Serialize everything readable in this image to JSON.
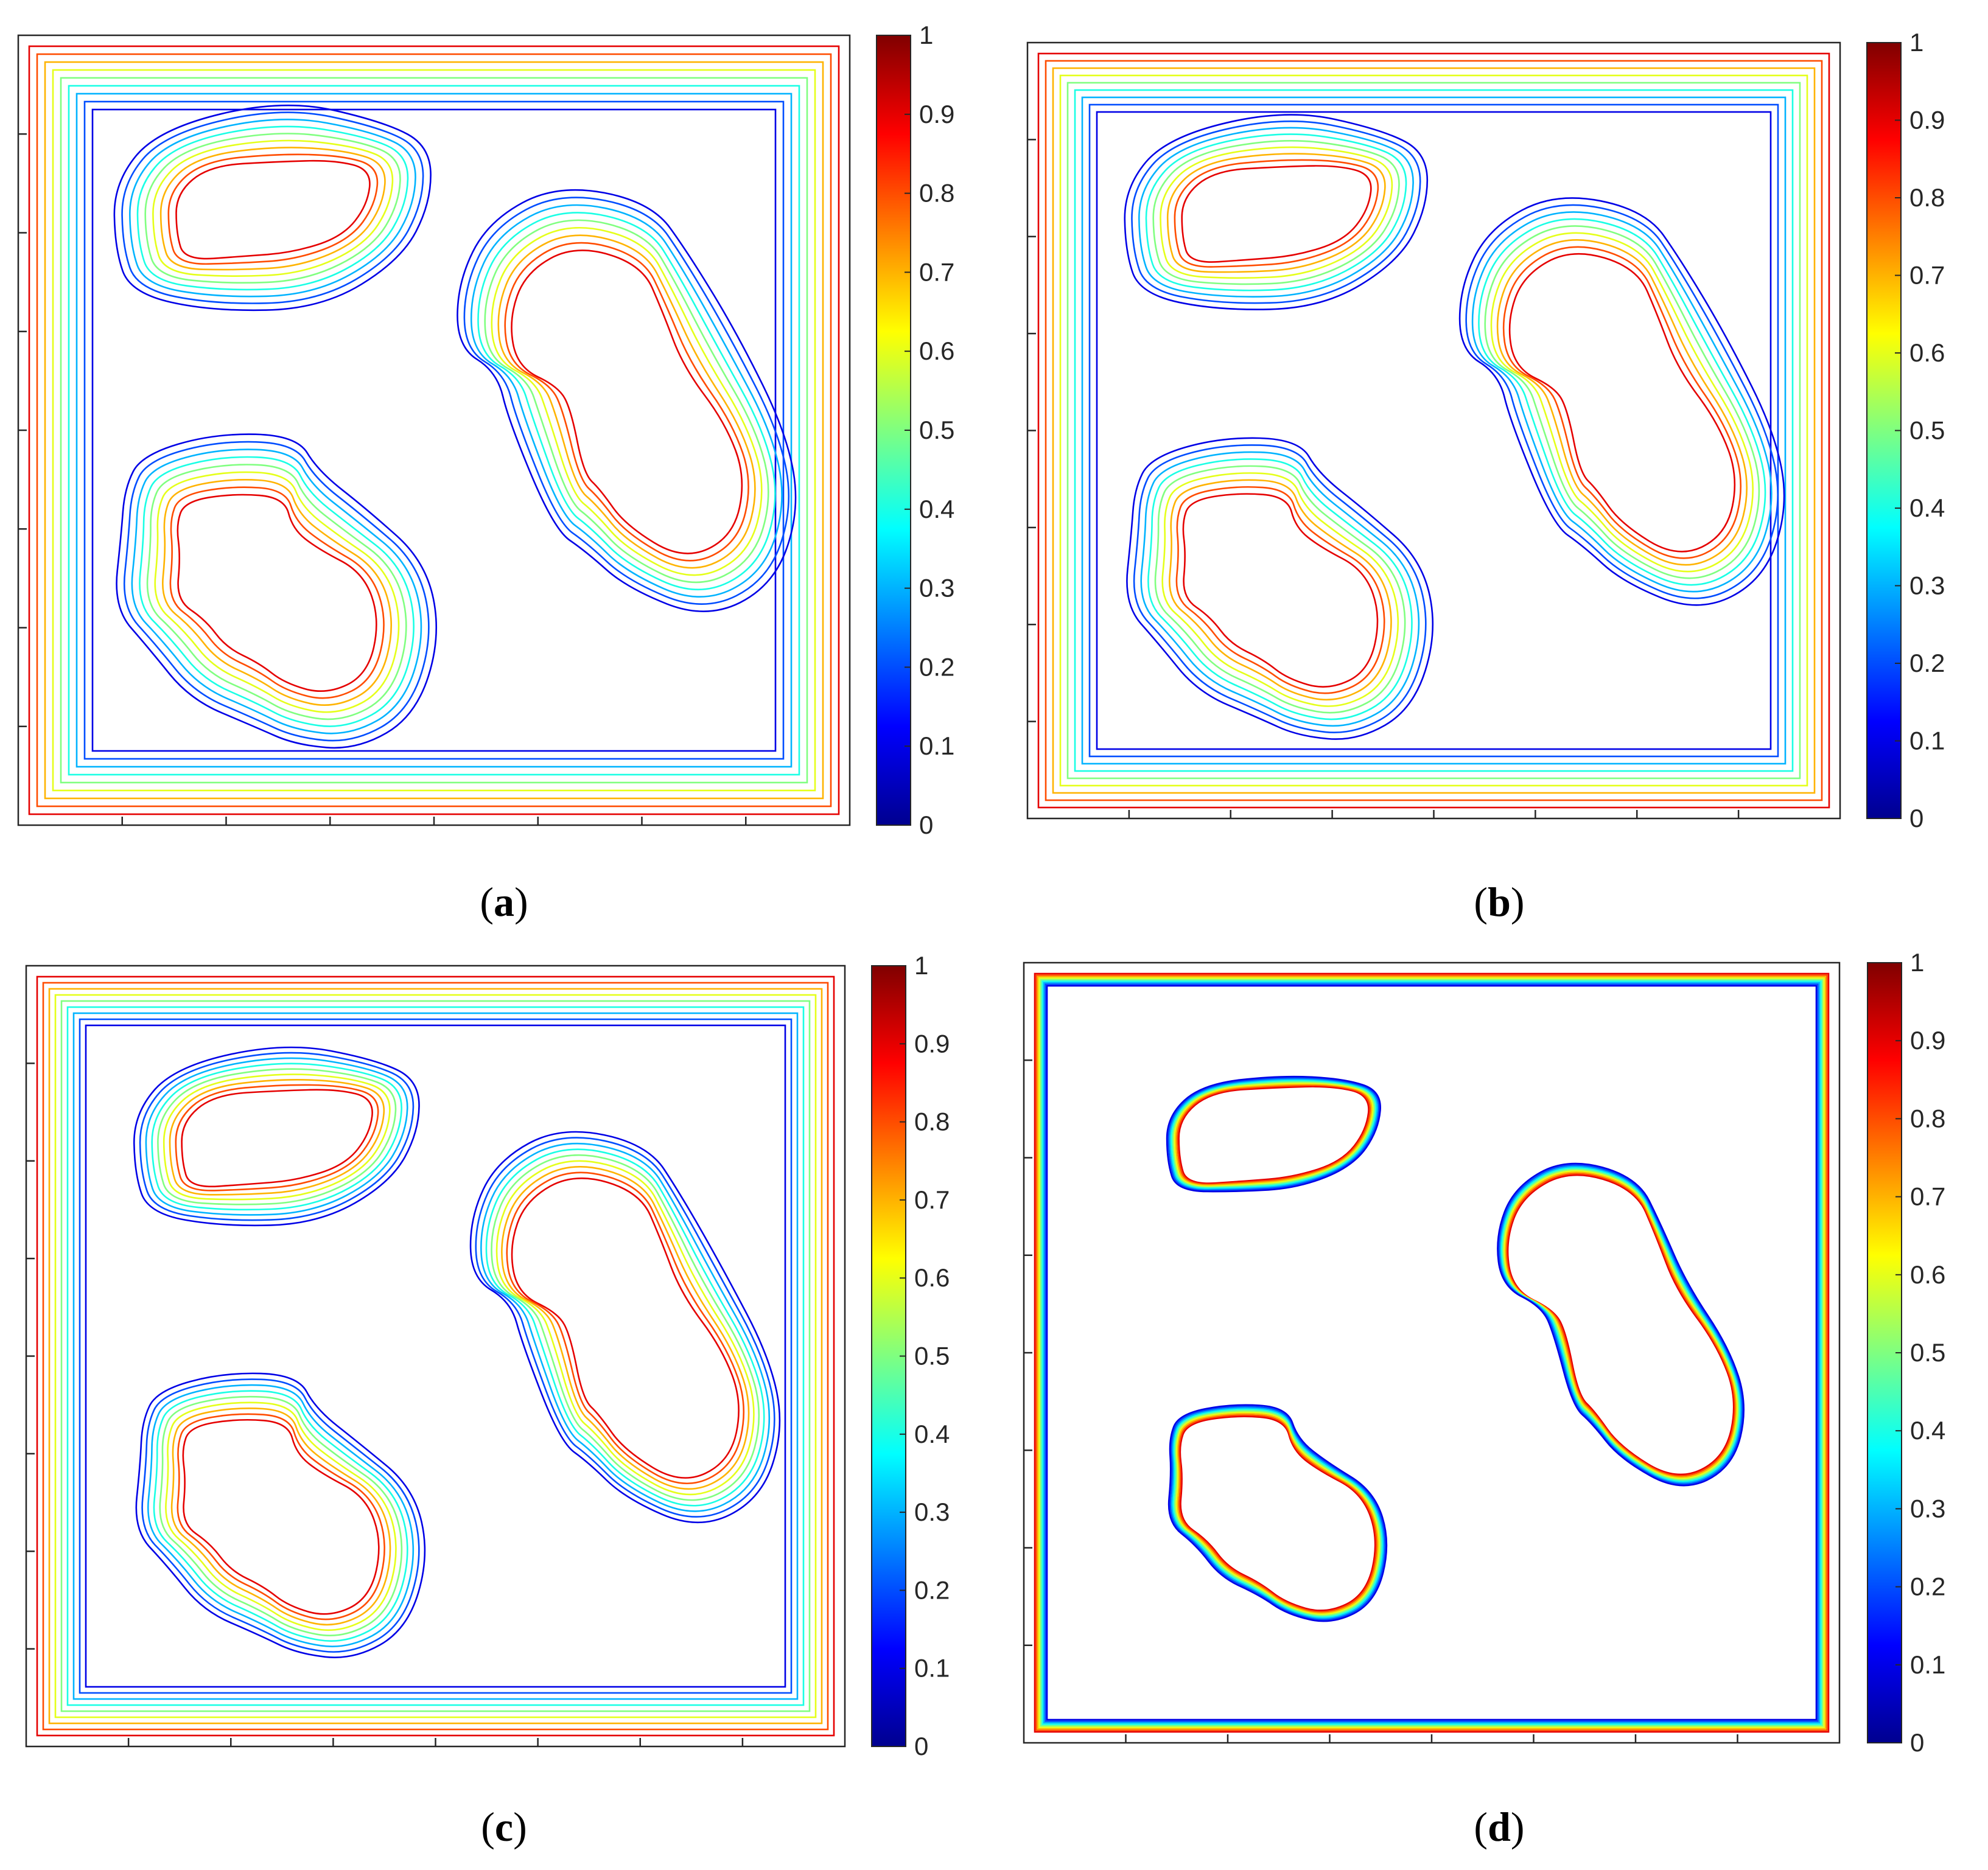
{
  "figure": {
    "panels": [
      {
        "id": "a",
        "label": "(a)",
        "letter": "a"
      },
      {
        "id": "b",
        "label": "(b)",
        "letter": "b"
      },
      {
        "id": "c",
        "label": "(c)",
        "letter": "c"
      },
      {
        "id": "d",
        "label": "(d)",
        "letter": "d"
      }
    ]
  },
  "chart_data": [
    {
      "panel": "a",
      "type": "contour",
      "title": "",
      "levels": [
        0.1,
        0.2,
        0.3,
        0.4,
        0.5,
        0.6,
        0.7,
        0.8,
        0.9
      ],
      "contour_spacing": 13,
      "shapes": [
        "frame",
        "blob_top_left",
        "blob_bottom_left",
        "blob_right"
      ],
      "colorbar": {
        "range": [
          0,
          1
        ],
        "tick_labels": [
          "0",
          "0.1",
          "0.2",
          "0.3",
          "0.4",
          "0.5",
          "0.6",
          "0.7",
          "0.8",
          "0.9",
          "1"
        ],
        "colormap": "jet"
      },
      "x_ticks": 7,
      "y_ticks": 7,
      "tick_labels_shown": false
    },
    {
      "panel": "b",
      "type": "contour",
      "title": "",
      "levels": [
        0.1,
        0.2,
        0.3,
        0.4,
        0.5,
        0.6,
        0.7,
        0.8,
        0.9
      ],
      "contour_spacing": 12,
      "shapes": [
        "frame",
        "blob_top_left",
        "blob_bottom_left",
        "blob_right"
      ],
      "colorbar": {
        "range": [
          0,
          1
        ],
        "tick_labels": [
          "0",
          "0.1",
          "0.2",
          "0.3",
          "0.4",
          "0.5",
          "0.6",
          "0.7",
          "0.8",
          "0.9",
          "1"
        ],
        "colormap": "jet"
      },
      "x_ticks": 7,
      "y_ticks": 7,
      "tick_labels_shown": false
    },
    {
      "panel": "c",
      "type": "contour",
      "title": "",
      "levels": [
        0.1,
        0.2,
        0.3,
        0.4,
        0.5,
        0.6,
        0.7,
        0.8,
        0.9
      ],
      "contour_spacing": 10,
      "shapes": [
        "frame",
        "blob_top_left",
        "blob_bottom_left",
        "blob_right"
      ],
      "colorbar": {
        "range": [
          0,
          1
        ],
        "tick_labels": [
          "0",
          "0.1",
          "0.2",
          "0.3",
          "0.4",
          "0.5",
          "0.6",
          "0.7",
          "0.8",
          "0.9",
          "1"
        ],
        "colormap": "jet"
      },
      "x_ticks": 7,
      "y_ticks": 7,
      "tick_labels_shown": false
    },
    {
      "panel": "d",
      "type": "contour",
      "title": "",
      "levels": [
        0.1,
        0.2,
        0.3,
        0.4,
        0.5,
        0.6,
        0.7,
        0.8,
        0.9
      ],
      "contour_spacing": 2.5,
      "shapes": [
        "frame",
        "blob_top_left",
        "blob_bottom_left",
        "blob_right"
      ],
      "colorbar": {
        "range": [
          0,
          1
        ],
        "tick_labels": [
          "0",
          "0.1",
          "0.2",
          "0.3",
          "0.4",
          "0.5",
          "0.6",
          "0.7",
          "0.8",
          "0.9",
          "1"
        ],
        "colormap": "jet"
      },
      "x_ticks": 7,
      "y_ticks": 7,
      "tick_labels_shown": false
    }
  ]
}
